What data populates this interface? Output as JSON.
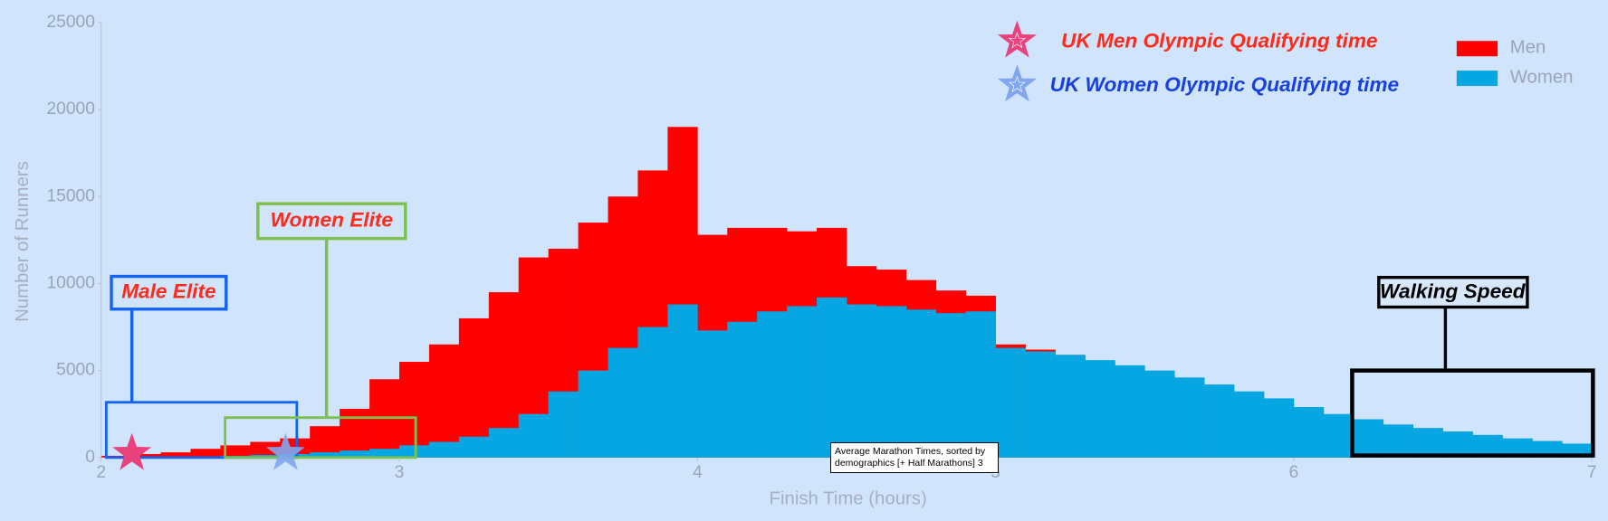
{
  "chart_data": {
    "type": "histogram",
    "xlabel": "Finish Time (hours)",
    "ylabel": "Number of Runners",
    "bins": [
      2.0,
      2.1,
      2.2,
      2.3,
      2.4,
      2.5,
      2.6,
      2.7,
      2.8,
      2.9,
      3.0,
      3.1,
      3.2,
      3.3,
      3.4,
      3.5,
      3.6,
      3.7,
      3.8,
      3.9,
      4.0,
      4.1,
      4.2,
      4.3,
      4.4,
      4.5,
      4.6,
      4.7,
      4.8,
      4.9,
      5.0,
      5.1,
      5.2,
      5.3,
      5.4,
      5.5,
      5.6,
      5.7,
      5.8,
      5.9,
      6.0,
      6.1,
      6.2,
      6.3,
      6.4,
      6.5,
      6.6,
      6.7,
      6.8,
      6.9,
      7.0
    ],
    "series": [
      {
        "name": "Men",
        "color": "#ff0000",
        "values": [
          100,
          200,
          300,
          500,
          700,
          900,
          1100,
          1800,
          2800,
          4500,
          5500,
          6500,
          8000,
          9500,
          11500,
          12000,
          13500,
          15000,
          16500,
          19000,
          12800,
          13200,
          13200,
          13000,
          13200,
          11000,
          10800,
          10200,
          9600,
          9300,
          6500,
          6200,
          5900,
          5500,
          5100,
          4700,
          4300,
          3900,
          3500,
          3100,
          2700,
          2300,
          2000,
          1800,
          1600,
          1400,
          1200,
          1000,
          850,
          700
        ]
      },
      {
        "name": "Women",
        "color": "#05a6e2",
        "values": [
          0,
          0,
          0,
          50,
          100,
          150,
          200,
          300,
          400,
          500,
          700,
          900,
          1200,
          1700,
          2500,
          3800,
          5000,
          6300,
          7500,
          8800,
          7300,
          7800,
          8400,
          8700,
          9200,
          8800,
          8700,
          8500,
          8300,
          8400,
          6300,
          6100,
          5900,
          5600,
          5300,
          5000,
          4600,
          4200,
          3800,
          3400,
          2900,
          2500,
          2200,
          1900,
          1700,
          1500,
          1300,
          1100,
          950,
          800
        ]
      }
    ],
    "xlim": [
      2,
      7
    ],
    "ylim": [
      0,
      25000
    ],
    "xticks": [
      2,
      3,
      4,
      5,
      6,
      7
    ],
    "yticks": [
      0,
      5000,
      10000,
      15000,
      20000,
      25000
    ],
    "grid": false,
    "legend": "upper right",
    "qualifying_labels": [
      "UK Men Olympic Qualifying time",
      "UK Women Olympic Qualifying time"
    ],
    "annotations": [
      "Male Elite",
      "Women Elite",
      "Walking Speed"
    ],
    "tooltip": "Average Marathon Times, sorted by demographics [+ Half Marathons] 3"
  }
}
